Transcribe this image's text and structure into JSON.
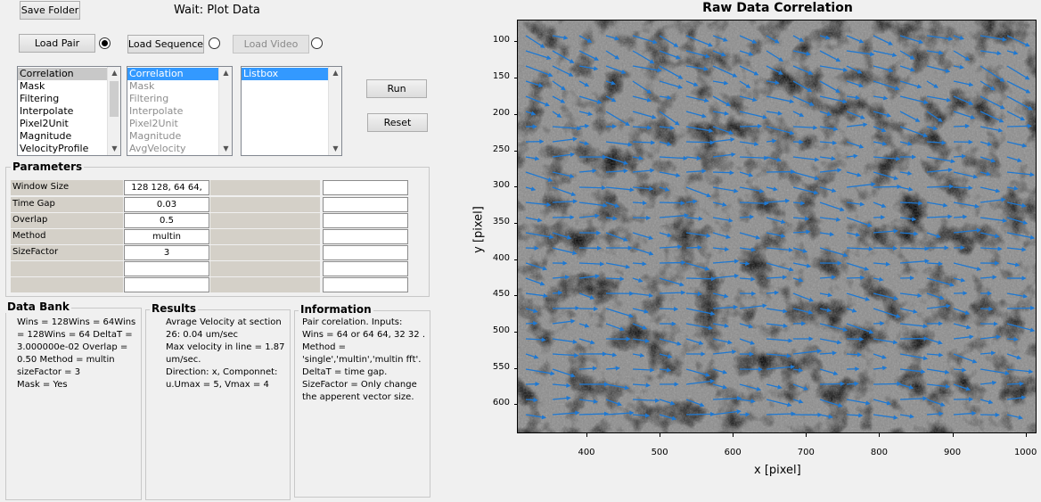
{
  "buttons": {
    "save_folder": "Save Folder",
    "load_pair": "Load Pair",
    "load_sequence": "Load Sequence",
    "load_video": "Load Video",
    "run": "Run",
    "reset": "Reset"
  },
  "status_text": "Wait:  Plot Data",
  "radios": {
    "load_pair": true,
    "load_sequence": false,
    "load_video": false
  },
  "list_steps": [
    "Correlation",
    "Mask",
    "Filtering",
    "Interpolate",
    "Pixel2Unit",
    "Magnitude",
    "VelocityProfile"
  ],
  "list_applied": [
    "Correlation",
    "Mask",
    "Filtering",
    "Interpolate",
    "Pixel2Unit",
    "Magnitude",
    "AvgVelocity"
  ],
  "list_box3": [
    "Listbox"
  ],
  "parameters": {
    "title": "Parameters",
    "rows": [
      {
        "label": "Window Size",
        "value": "128  128, 64  64,"
      },
      {
        "label": "Time Gap",
        "value": "0.03"
      },
      {
        "label": "Overlap",
        "value": "0.5"
      },
      {
        "label": "Method",
        "value": "multin"
      },
      {
        "label": "SizeFactor",
        "value": "3"
      },
      {
        "label": "",
        "value": ""
      },
      {
        "label": "",
        "value": ""
      }
    ]
  },
  "data_bank": {
    "title": "Data Bank",
    "lines": [
      "Wins = 128Wins = 64Wins",
      "= 128Wins = 64   DeltaT =",
      "3.000000e-02   Overlap =",
      "0.50   Method = multin",
      "sizeFactor = 3",
      "Mask = Yes"
    ]
  },
  "results": {
    "title": "Results",
    "lines": [
      "Avrage Velocity at section",
      "26: 0.04 um/sec",
      "Max velocity in line = 1.87",
      "um/sec.",
      "Direction: x,   Componnet:",
      "u.Umax = 5, Vmax = 4"
    ]
  },
  "information": {
    "title": "Information",
    "lines": [
      "Pair corelation. Inputs:",
      "Wins = 64 or 64 64, 32 32 .",
      "Method =",
      "'single','multin','multin fft'.",
      "DeltaT = time gap.",
      "SizeFactor = Only change",
      "the apperent vector size."
    ]
  },
  "plot": {
    "title": "Raw Data Correlation",
    "xlabel": "x [pixel]",
    "ylabel": "y [pixel]",
    "xticks": [
      "400",
      "500",
      "600",
      "700",
      "800",
      "900",
      "1000"
    ],
    "yticks": [
      "100",
      "150",
      "200",
      "250",
      "300",
      "350",
      "400",
      "450",
      "500",
      "550",
      "600"
    ],
    "xlim": [
      305,
      1015
    ],
    "ylim": [
      70,
      640
    ],
    "vector_color": "#1e78d2"
  }
}
